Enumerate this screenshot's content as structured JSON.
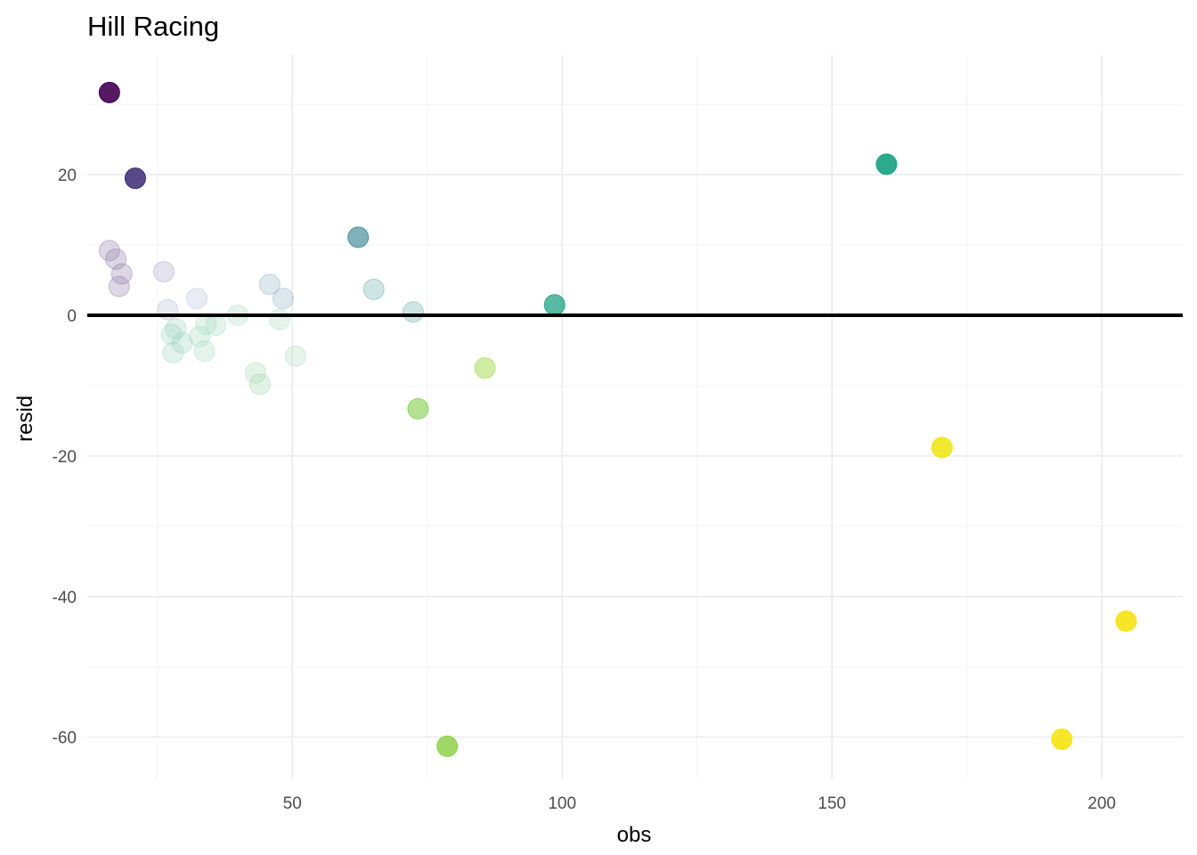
{
  "chart_data": {
    "type": "scatter",
    "title": "Hill Racing",
    "xlabel": "obs",
    "ylabel": "resid",
    "xlim": [
      12,
      215
    ],
    "ylim": [
      -66,
      37
    ],
    "x_ticks": [
      50,
      100,
      150,
      200
    ],
    "y_ticks": [
      -60,
      -40,
      -20,
      0,
      20
    ],
    "x_minor_ticks": [
      25,
      75,
      125,
      175
    ],
    "y_minor_ticks": [
      -50,
      -30,
      -10,
      10,
      30
    ],
    "grid": true,
    "reference_line": {
      "y": 0,
      "color": "#000000"
    },
    "points": [
      {
        "x": 16.1,
        "y": 31.7,
        "color": "#440154",
        "opacity": 0.9
      },
      {
        "x": 20.9,
        "y": 19.5,
        "color": "#3b2a74",
        "opacity": 0.85
      },
      {
        "x": 16.1,
        "y": 9.2,
        "color": "#8f7ba8",
        "opacity": 0.3
      },
      {
        "x": 17.3,
        "y": 8.0,
        "color": "#8f7ba8",
        "opacity": 0.3
      },
      {
        "x": 18.4,
        "y": 5.9,
        "color": "#8f7ba8",
        "opacity": 0.3
      },
      {
        "x": 17.9,
        "y": 4.1,
        "color": "#8f7ba8",
        "opacity": 0.3
      },
      {
        "x": 26.2,
        "y": 6.2,
        "color": "#a8a2c8",
        "opacity": 0.3
      },
      {
        "x": 26.9,
        "y": 0.8,
        "color": "#b5b8d6",
        "opacity": 0.3
      },
      {
        "x": 32.3,
        "y": 2.4,
        "color": "#b5c0d9",
        "opacity": 0.3
      },
      {
        "x": 28.4,
        "y": -1.9,
        "color": "#9cd3c0",
        "opacity": 0.3
      },
      {
        "x": 27.6,
        "y": -2.7,
        "color": "#9cd3c0",
        "opacity": 0.3
      },
      {
        "x": 29.6,
        "y": -3.9,
        "color": "#9cd3c0",
        "opacity": 0.3
      },
      {
        "x": 27.9,
        "y": -5.3,
        "color": "#9cd3c0",
        "opacity": 0.3
      },
      {
        "x": 32.8,
        "y": -3.0,
        "color": "#a4dcc2",
        "opacity": 0.3
      },
      {
        "x": 34.0,
        "y": -1.3,
        "color": "#a4dcc2",
        "opacity": 0.3
      },
      {
        "x": 35.8,
        "y": -1.4,
        "color": "#a4dcc2",
        "opacity": 0.3
      },
      {
        "x": 33.7,
        "y": -5.1,
        "color": "#a4dcc2",
        "opacity": 0.3
      },
      {
        "x": 39.9,
        "y": 0.0,
        "color": "#a8dcb8",
        "opacity": 0.3
      },
      {
        "x": 43.2,
        "y": -8.2,
        "color": "#9fd7b0",
        "opacity": 0.3
      },
      {
        "x": 44.0,
        "y": -9.8,
        "color": "#9fd7b0",
        "opacity": 0.3
      },
      {
        "x": 47.6,
        "y": -0.6,
        "color": "#a8dcb8",
        "opacity": 0.3
      },
      {
        "x": 45.8,
        "y": 4.4,
        "color": "#8fb0c8",
        "opacity": 0.3
      },
      {
        "x": 48.3,
        "y": 2.4,
        "color": "#8fb0c8",
        "opacity": 0.3
      },
      {
        "x": 50.6,
        "y": -5.8,
        "color": "#a8dcb8",
        "opacity": 0.3
      },
      {
        "x": 62.2,
        "y": 11.1,
        "color": "#2d7f8e",
        "opacity": 0.6
      },
      {
        "x": 65.1,
        "y": 3.7,
        "color": "#5fa9a8",
        "opacity": 0.3
      },
      {
        "x": 72.4,
        "y": 0.5,
        "color": "#5fa9a8",
        "opacity": 0.3
      },
      {
        "x": 73.3,
        "y": -13.3,
        "color": "#7ecf4a",
        "opacity": 0.6
      },
      {
        "x": 85.7,
        "y": -7.5,
        "color": "#a8dc5a",
        "opacity": 0.55
      },
      {
        "x": 78.7,
        "y": -61.3,
        "color": "#8fd14a",
        "opacity": 0.85
      },
      {
        "x": 98.6,
        "y": 1.5,
        "color": "#20a387",
        "opacity": 0.75
      },
      {
        "x": 160.1,
        "y": 21.5,
        "color": "#21a585",
        "opacity": 0.95
      },
      {
        "x": 170.4,
        "y": -18.8,
        "color": "#efe51c",
        "opacity": 0.9
      },
      {
        "x": 192.6,
        "y": -60.3,
        "color": "#f7e51c",
        "opacity": 0.95
      },
      {
        "x": 204.5,
        "y": -43.5,
        "color": "#f7e51c",
        "opacity": 0.95
      }
    ]
  }
}
